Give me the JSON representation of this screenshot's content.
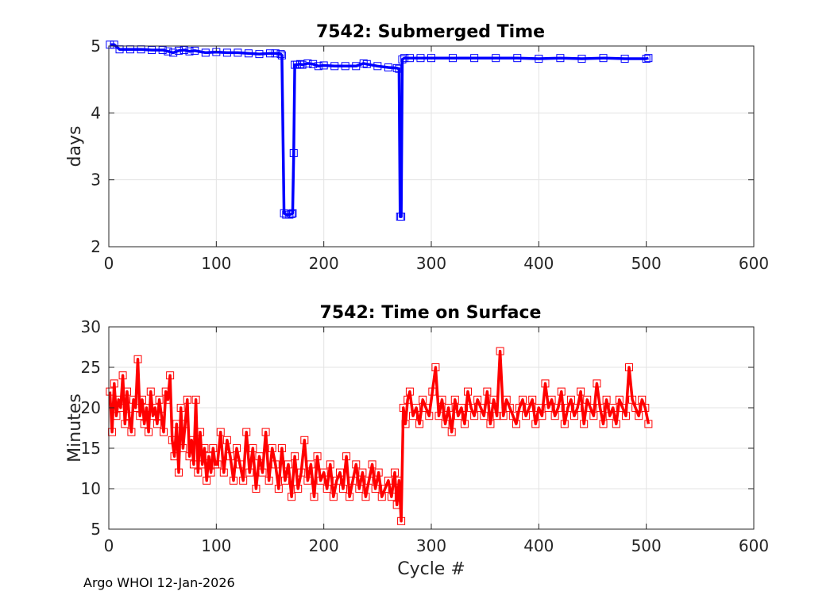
{
  "footer": "Argo WHOI 12-Jan-2026",
  "chart_data": [
    {
      "type": "line",
      "title": "7542: Submerged Time",
      "xlabel": "",
      "ylabel": "days",
      "xlim": [
        0,
        600
      ],
      "ylim": [
        2,
        5
      ],
      "xticks": [
        0,
        100,
        200,
        300,
        400,
        500,
        600
      ],
      "yticks": [
        2,
        3,
        4,
        5
      ],
      "grid": true,
      "marker": "square",
      "color": "#0000ff",
      "series": [
        {
          "x": [
            1,
            5,
            10,
            20,
            30,
            40,
            50,
            55,
            60,
            65,
            70,
            75,
            80,
            90,
            100,
            110,
            120,
            130,
            140,
            150,
            155,
            160,
            161,
            163,
            165,
            168,
            170,
            171,
            172,
            173,
            175,
            178,
            180,
            185,
            190,
            195,
            200,
            210,
            220,
            230,
            237,
            240,
            250,
            260,
            268,
            270,
            271,
            272,
            273,
            275,
            280,
            290,
            300,
            320,
            340,
            360,
            380,
            400,
            420,
            440,
            460,
            480,
            500,
            502
          ],
          "y": [
            5.02,
            5.02,
            4.95,
            4.95,
            4.95,
            4.94,
            4.94,
            4.92,
            4.9,
            4.93,
            4.94,
            4.92,
            4.93,
            4.9,
            4.91,
            4.9,
            4.9,
            4.89,
            4.88,
            4.89,
            4.89,
            4.88,
            4.86,
            2.5,
            2.48,
            2.48,
            2.49,
            2.5,
            3.4,
            4.72,
            4.72,
            4.73,
            4.72,
            4.74,
            4.73,
            4.7,
            4.71,
            4.7,
            4.7,
            4.7,
            4.74,
            4.73,
            4.7,
            4.68,
            4.67,
            4.66,
            2.45,
            2.45,
            4.8,
            4.82,
            4.82,
            4.82,
            4.82,
            4.82,
            4.82,
            4.82,
            4.82,
            4.81,
            4.82,
            4.81,
            4.82,
            4.81,
            4.81,
            4.82
          ]
        }
      ]
    },
    {
      "type": "line",
      "title": "7542: Time on Surface",
      "xlabel": "Cycle #",
      "ylabel": "Minutes",
      "xlim": [
        0,
        600
      ],
      "ylim": [
        5,
        30
      ],
      "xticks": [
        0,
        100,
        200,
        300,
        400,
        500,
        600
      ],
      "yticks": [
        5,
        10,
        15,
        20,
        25,
        30
      ],
      "grid": true,
      "marker": "square",
      "color": "#ff0000",
      "series": [
        {
          "x": [
            1,
            3,
            5,
            7,
            9,
            11,
            13,
            15,
            17,
            19,
            21,
            23,
            25,
            27,
            29,
            31,
            33,
            35,
            37,
            39,
            41,
            43,
            45,
            47,
            49,
            51,
            53,
            55,
            57,
            59,
            61,
            63,
            65,
            67,
            69,
            71,
            73,
            75,
            77,
            79,
            81,
            83,
            85,
            87,
            89,
            91,
            93,
            95,
            97,
            99,
            101,
            104,
            107,
            110,
            113,
            116,
            119,
            122,
            125,
            128,
            131,
            134,
            137,
            140,
            143,
            146,
            149,
            152,
            155,
            158,
            161,
            164,
            167,
            170,
            173,
            176,
            179,
            182,
            185,
            188,
            191,
            194,
            197,
            200,
            203,
            206,
            209,
            212,
            215,
            218,
            221,
            224,
            227,
            230,
            233,
            236,
            239,
            242,
            245,
            248,
            251,
            254,
            257,
            260,
            263,
            266,
            268,
            270,
            272,
            274,
            276,
            278,
            280,
            283,
            286,
            289,
            292,
            295,
            298,
            301,
            304,
            307,
            310,
            313,
            316,
            319,
            322,
            325,
            328,
            331,
            334,
            337,
            340,
            343,
            346,
            349,
            352,
            355,
            358,
            361,
            364,
            367,
            370,
            373,
            376,
            379,
            382,
            385,
            388,
            391,
            394,
            397,
            400,
            403,
            406,
            409,
            412,
            415,
            418,
            421,
            424,
            427,
            430,
            433,
            436,
            439,
            442,
            445,
            448,
            451,
            454,
            457,
            460,
            463,
            466,
            469,
            472,
            475,
            478,
            481,
            484,
            487,
            490,
            493,
            496,
            499,
            502
          ],
          "y": [
            22,
            17,
            23,
            19,
            21,
            20,
            24,
            18,
            22,
            19,
            17,
            21,
            20,
            26,
            19,
            21,
            18,
            20,
            17,
            22,
            19,
            20,
            18,
            21,
            19,
            17,
            22,
            21,
            24,
            16,
            14,
            18,
            12,
            20,
            15,
            18,
            21,
            14,
            16,
            13,
            21,
            12,
            17,
            13,
            15,
            11,
            14,
            12,
            15,
            13,
            13,
            17,
            12,
            16,
            14,
            11,
            15,
            13,
            11,
            17,
            12,
            15,
            10,
            14,
            12,
            17,
            11,
            15,
            13,
            10,
            15,
            11,
            13,
            9,
            14,
            10,
            12,
            16,
            11,
            13,
            9,
            14,
            11,
            12,
            10,
            13,
            9,
            11,
            12,
            10,
            14,
            9,
            11,
            13,
            10,
            12,
            9,
            11,
            13,
            10,
            12,
            9,
            10,
            11,
            9,
            12,
            8,
            11,
            6,
            20,
            18,
            21,
            22,
            19,
            20,
            18,
            21,
            20,
            19,
            22,
            25,
            19,
            21,
            18,
            20,
            17,
            21,
            19,
            20,
            18,
            22,
            20,
            19,
            21,
            20,
            19,
            22,
            18,
            21,
            19,
            27,
            19,
            21,
            20,
            19,
            18,
            20,
            21,
            19,
            20,
            21,
            18,
            20,
            19,
            23,
            20,
            21,
            19,
            20,
            22,
            18,
            20,
            21,
            19,
            20,
            22,
            18,
            21,
            20,
            19,
            23,
            20,
            18,
            21,
            19,
            20,
            18,
            21,
            20,
            19,
            25,
            21,
            20,
            19,
            21,
            20,
            18
          ]
        }
      ]
    }
  ]
}
